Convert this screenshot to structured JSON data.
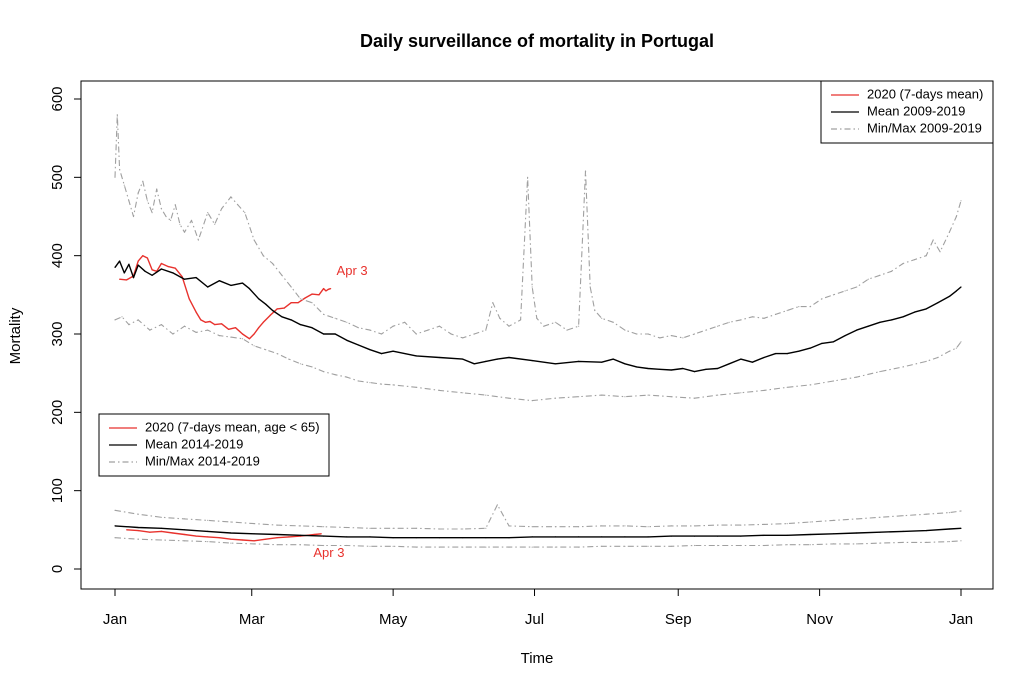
{
  "chart_data": {
    "type": "line",
    "title": "Daily surveillance of mortality in Portugal",
    "xlabel": "Time",
    "ylabel": "Mortality",
    "x_ticks": [
      "Jan",
      "Mar",
      "May",
      "Jul",
      "Sep",
      "Nov",
      "Jan"
    ],
    "x_tick_days": [
      0,
      59,
      120,
      181,
      243,
      304,
      365
    ],
    "y_ticks": [
      "0",
      "100",
      "200",
      "300",
      "400",
      "500",
      "600"
    ],
    "ylim": [
      0,
      600
    ],
    "grid": false,
    "legends": [
      {
        "placement": "top-right",
        "entries": [
          {
            "label": "2020 (7-days mean)",
            "color": "#e8322d",
            "style": "solid"
          },
          {
            "label": "Mean 2009-2019",
            "color": "#000000",
            "style": "solid"
          },
          {
            "label": "Min/Max 2009-2019",
            "color": "#a0a0a0",
            "style": "dashdot"
          }
        ]
      },
      {
        "placement": "middle-left",
        "entries": [
          {
            "label": "2020 (7-days mean, age < 65)",
            "color": "#e8322d",
            "style": "solid"
          },
          {
            "label": "Mean 2014-2019",
            "color": "#000000",
            "style": "solid"
          },
          {
            "label": "Min/Max 2014-2019",
            "color": "#a0a0a0",
            "style": "dashdot"
          }
        ]
      }
    ],
    "annotations": [
      {
        "text": "Apr 3",
        "x_day": 93,
        "y": 380,
        "color": "#e8322d"
      },
      {
        "text": "Apr 3",
        "x_day": 83,
        "y": 20,
        "color": "#e8322d"
      }
    ],
    "series": [
      {
        "name": "2020 (7-days mean)",
        "color": "#e8322d",
        "style": "solid",
        "x_day": [
          2,
          5,
          8,
          10,
          12,
          14,
          16,
          18,
          20,
          23,
          26,
          29,
          32,
          35,
          37,
          39,
          41,
          43,
          46,
          49,
          52,
          55,
          58,
          60,
          62,
          64,
          67,
          70,
          73,
          76,
          79,
          82,
          85,
          88,
          90,
          91,
          92,
          93
        ],
        "values": [
          370,
          369,
          374,
          393,
          400,
          397,
          382,
          380,
          390,
          386,
          384,
          373,
          345,
          328,
          318,
          315,
          316,
          312,
          313,
          306,
          308,
          300,
          294,
          300,
          308,
          315,
          324,
          332,
          333,
          340,
          340,
          346,
          351,
          350,
          358,
          355,
          357,
          358
        ]
      },
      {
        "name": "Mean 2009-2019",
        "color": "#000000",
        "style": "solid",
        "x_day": [
          0,
          2,
          4,
          6,
          8,
          10,
          13,
          16,
          20,
          25,
          30,
          35,
          40,
          45,
          50,
          55,
          58,
          62,
          65,
          68,
          72,
          76,
          80,
          85,
          90,
          95,
          100,
          105,
          110,
          115,
          120,
          130,
          140,
          150,
          155,
          160,
          165,
          170,
          180,
          190,
          200,
          210,
          215,
          220,
          225,
          230,
          235,
          240,
          245,
          250,
          255,
          260,
          265,
          270,
          275,
          280,
          285,
          290,
          295,
          300,
          305,
          310,
          315,
          320,
          325,
          330,
          335,
          340,
          345,
          350,
          355,
          360,
          363,
          365
        ],
        "values": [
          385,
          393,
          378,
          389,
          372,
          388,
          380,
          375,
          383,
          378,
          370,
          372,
          360,
          368,
          362,
          365,
          358,
          345,
          338,
          330,
          322,
          318,
          312,
          308,
          300,
          300,
          292,
          286,
          280,
          275,
          278,
          272,
          270,
          268,
          262,
          265,
          268,
          270,
          266,
          262,
          265,
          264,
          268,
          262,
          258,
          256,
          255,
          254,
          256,
          252,
          255,
          256,
          262,
          268,
          264,
          270,
          275,
          275,
          278,
          282,
          288,
          290,
          298,
          305,
          310,
          315,
          318,
          322,
          328,
          332,
          340,
          348,
          355,
          360
        ]
      },
      {
        "name": "Max 2009-2019",
        "color": "#a0a0a0",
        "style": "dashdot",
        "x_day": [
          0,
          1,
          2,
          4,
          6,
          8,
          10,
          12,
          14,
          16,
          18,
          20,
          22,
          24,
          26,
          28,
          30,
          33,
          36,
          40,
          43,
          46,
          50,
          53,
          56,
          60,
          64,
          68,
          72,
          76,
          80,
          85,
          90,
          95,
          100,
          105,
          110,
          115,
          120,
          125,
          130,
          135,
          140,
          145,
          150,
          155,
          160,
          163,
          166,
          170,
          175,
          178,
          180,
          182,
          185,
          190,
          195,
          200,
          203,
          205,
          207,
          210,
          215,
          220,
          225,
          230,
          235,
          240,
          245,
          250,
          255,
          260,
          265,
          270,
          275,
          280,
          285,
          290,
          295,
          300,
          305,
          310,
          315,
          320,
          325,
          330,
          335,
          340,
          345,
          350,
          353,
          356,
          360,
          363,
          365
        ],
        "values": [
          500,
          580,
          510,
          490,
          470,
          450,
          480,
          495,
          470,
          455,
          485,
          460,
          450,
          445,
          465,
          440,
          430,
          445,
          420,
          455,
          440,
          460,
          475,
          465,
          455,
          420,
          400,
          390,
          375,
          360,
          345,
          340,
          325,
          320,
          315,
          308,
          305,
          300,
          310,
          315,
          300,
          305,
          310,
          300,
          295,
          300,
          305,
          340,
          320,
          310,
          318,
          500,
          360,
          320,
          310,
          315,
          305,
          310,
          508,
          360,
          330,
          320,
          315,
          305,
          300,
          300,
          295,
          298,
          295,
          300,
          305,
          310,
          315,
          318,
          322,
          320,
          325,
          330,
          335,
          335,
          345,
          350,
          355,
          360,
          370,
          375,
          380,
          390,
          395,
          400,
          420,
          405,
          430,
          450,
          470
        ]
      },
      {
        "name": "Min 2009-2019",
        "color": "#a0a0a0",
        "style": "dashdot",
        "x_day": [
          0,
          3,
          6,
          10,
          15,
          20,
          25,
          30,
          35,
          40,
          45,
          50,
          55,
          60,
          65,
          70,
          75,
          80,
          85,
          90,
          95,
          100,
          105,
          110,
          115,
          120,
          130,
          140,
          150,
          160,
          170,
          180,
          190,
          200,
          210,
          220,
          230,
          240,
          250,
          260,
          270,
          280,
          290,
          300,
          310,
          320,
          330,
          340,
          350,
          355,
          360,
          363,
          365
        ],
        "values": [
          318,
          322,
          312,
          318,
          305,
          312,
          300,
          310,
          302,
          305,
          298,
          296,
          294,
          285,
          280,
          275,
          268,
          262,
          258,
          252,
          248,
          245,
          240,
          238,
          236,
          235,
          232,
          228,
          225,
          222,
          218,
          215,
          218,
          220,
          222,
          220,
          222,
          220,
          218,
          222,
          225,
          228,
          232,
          235,
          240,
          245,
          252,
          258,
          265,
          270,
          278,
          282,
          290
        ]
      },
      {
        "name": "2020 (7-days mean, age < 65)",
        "color": "#e8322d",
        "style": "solid",
        "x_day": [
          5,
          10,
          15,
          20,
          25,
          30,
          35,
          40,
          45,
          50,
          55,
          60,
          65,
          70,
          75,
          80,
          83,
          86,
          89
        ],
        "values": [
          50,
          49,
          47,
          48,
          46,
          44,
          42,
          41,
          40,
          38,
          37,
          36,
          38,
          40,
          41,
          42,
          43,
          44,
          45
        ]
      },
      {
        "name": "Mean 2014-2019",
        "color": "#000000",
        "style": "solid",
        "x_day": [
          0,
          10,
          20,
          30,
          40,
          50,
          60,
          70,
          80,
          90,
          100,
          110,
          120,
          130,
          140,
          150,
          160,
          170,
          180,
          190,
          200,
          210,
          220,
          230,
          240,
          250,
          260,
          270,
          280,
          290,
          300,
          310,
          320,
          330,
          340,
          350,
          360,
          365
        ],
        "values": [
          55,
          53,
          52,
          50,
          48,
          46,
          45,
          44,
          43,
          42,
          41,
          41,
          40,
          40,
          40,
          40,
          40,
          40,
          41,
          41,
          41,
          41,
          41,
          41,
          42,
          42,
          42,
          42,
          43,
          43,
          44,
          45,
          46,
          47,
          48,
          49,
          51,
          52
        ]
      },
      {
        "name": "Max 2014-2019",
        "color": "#a0a0a0",
        "style": "dashdot",
        "x_day": [
          0,
          10,
          20,
          30,
          40,
          50,
          60,
          70,
          80,
          90,
          100,
          110,
          120,
          130,
          140,
          150,
          160,
          165,
          170,
          180,
          190,
          200,
          210,
          220,
          230,
          240,
          250,
          260,
          270,
          280,
          290,
          300,
          310,
          320,
          330,
          340,
          350,
          360,
          365
        ],
        "values": [
          75,
          70,
          66,
          64,
          62,
          60,
          58,
          56,
          55,
          54,
          53,
          52,
          52,
          52,
          51,
          51,
          52,
          82,
          55,
          54,
          54,
          54,
          55,
          55,
          54,
          55,
          55,
          56,
          56,
          57,
          58,
          60,
          62,
          64,
          66,
          68,
          70,
          72,
          74
        ]
      },
      {
        "name": "Min 2014-2019",
        "color": "#a0a0a0",
        "style": "dashdot",
        "x_day": [
          0,
          10,
          20,
          30,
          40,
          50,
          60,
          70,
          80,
          90,
          100,
          110,
          120,
          130,
          140,
          150,
          160,
          170,
          180,
          190,
          200,
          210,
          220,
          230,
          240,
          250,
          260,
          270,
          280,
          290,
          300,
          310,
          320,
          330,
          340,
          350,
          360,
          365
        ],
        "values": [
          40,
          38,
          37,
          36,
          35,
          33,
          32,
          31,
          31,
          30,
          30,
          29,
          29,
          28,
          28,
          28,
          28,
          28,
          28,
          28,
          28,
          29,
          29,
          29,
          29,
          30,
          30,
          30,
          30,
          31,
          31,
          32,
          32,
          33,
          34,
          34,
          35,
          36
        ]
      }
    ]
  }
}
